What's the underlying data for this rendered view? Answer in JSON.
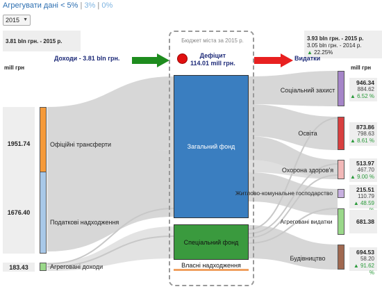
{
  "header": {
    "aggregate_label": "Агрегувати дані",
    "aggregate_selected": "< 5%",
    "separator": "|",
    "options": [
      "3%",
      "0%"
    ]
  },
  "year_select": {
    "value": "2015"
  },
  "tooltip_left": {
    "text": "3.81 bln грн. - 2015 р."
  },
  "tooltip_right": {
    "line1": "3.93 bln грн. - 2015 р.",
    "line2": "3.05 bln грн. - 2014 р.",
    "change": "22.25%"
  },
  "income_header": "Доходи - 3.81 bln грн.",
  "expense_header": "Видатки",
  "unit_left": "mill грн",
  "unit_right": "mill грн",
  "budget": {
    "title": "Бюджет міста за 2015 р.",
    "deficit_label": "Дефіцит",
    "deficit_value": "114.01 mill грн.",
    "funds": {
      "general": "Загальний фонд",
      "special": "Спеціальний фонд",
      "own": "Власні надходження"
    }
  },
  "income": [
    {
      "value": "1951.74",
      "label": "Офіційні трансферти",
      "color": "#f59a3a"
    },
    {
      "value": "1676.40",
      "label": "Податкові надходження",
      "color": "#a8c8e8"
    },
    {
      "value": "183.43",
      "label": "Агреговані доходи",
      "color": "#9ad88a"
    }
  ],
  "expenses": [
    {
      "label": "Соціальний захист",
      "v2015": "946.34",
      "v2014": "884.62",
      "change": "6.52 %",
      "color": "#a585c8"
    },
    {
      "label": "Освіта",
      "v2015": "873.86",
      "v2014": "798.63",
      "change": "8.61 %",
      "color": "#d84040"
    },
    {
      "label": "Охорона здоров'я",
      "v2015": "513.97",
      "v2014": "467.70",
      "change": "9.00 %",
      "color": "#f2b8b8"
    },
    {
      "label": "Житлово-комунальне господарство",
      "v2015": "215.51",
      "v2014": "110.79",
      "change": "48.59 %",
      "color": "#c8b0e0"
    },
    {
      "label": "Агреговані видатки",
      "v2015": "681.38",
      "v2014": "",
      "change": "",
      "color": "#9ad88a"
    },
    {
      "label": "Будівництво",
      "v2015": "694.53",
      "v2014": "58.20",
      "change": "91.62 %",
      "color": "#a06850"
    }
  ],
  "colors": {
    "arrow_in": "#1e8c1e",
    "arrow_out": "#e82020",
    "flow": "#d0d0d0",
    "up": "#2a9a3a"
  },
  "icons": [
    "triangle-up-icon",
    "arrow-right-icon",
    "chevron-down-icon"
  ]
}
